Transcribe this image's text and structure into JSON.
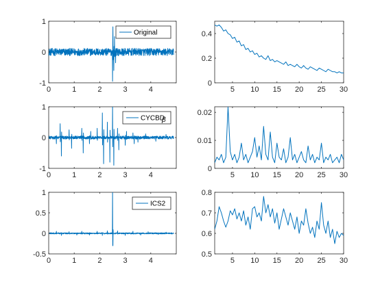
{
  "colors": {
    "series": "#0072BD",
    "axis": "#262626",
    "background": "#ffffff"
  },
  "chart_data": [
    {
      "type": "line",
      "panel": "top-left",
      "legend": [
        "Original"
      ],
      "legend_placement": "top-right",
      "xlim": [
        0,
        5
      ],
      "ylim": [
        -1,
        1
      ],
      "xticks": [
        0,
        1,
        2,
        3,
        4
      ],
      "yticks": [
        -1,
        0,
        1
      ],
      "grid": false,
      "series": [
        {
          "name": "Original",
          "kind": "noisy-signal-with-impulse",
          "x_range": [
            0,
            4.9
          ],
          "noise_amplitude": 0.12,
          "impulses": [
            [
              2.5,
              -0.95
            ],
            [
              2.52,
              0.82
            ],
            [
              2.55,
              -0.6
            ],
            [
              2.58,
              0.5
            ],
            [
              2.62,
              -0.35
            ]
          ]
        }
      ]
    },
    {
      "type": "line",
      "panel": "top-right",
      "legend": [],
      "xlim": [
        1,
        30
      ],
      "ylim": [
        0,
        0.5
      ],
      "xticks": [
        5,
        10,
        15,
        20,
        25,
        30
      ],
      "yticks": [
        0,
        0.2,
        0.4
      ],
      "grid": false,
      "series": [
        {
          "x": [
            1,
            1.5,
            2,
            2.5,
            3,
            3.5,
            4,
            4.5,
            5,
            5.5,
            6,
            6.5,
            7,
            7.5,
            8,
            8.5,
            9,
            9.5,
            10,
            10.5,
            11,
            11.5,
            12,
            12.5,
            13,
            13.5,
            14,
            14.5,
            15,
            15.5,
            16,
            16.5,
            17,
            17.5,
            18,
            18.5,
            19,
            19.5,
            20,
            20.5,
            21,
            21.5,
            22,
            22.5,
            23,
            23.5,
            24,
            24.5,
            25,
            25.5,
            26,
            26.5,
            27,
            27.5,
            28,
            28.5,
            29,
            29.5,
            30
          ],
          "values": [
            0.47,
            0.46,
            0.47,
            0.45,
            0.42,
            0.43,
            0.4,
            0.39,
            0.36,
            0.37,
            0.33,
            0.34,
            0.3,
            0.31,
            0.27,
            0.28,
            0.25,
            0.26,
            0.23,
            0.24,
            0.21,
            0.22,
            0.2,
            0.19,
            0.22,
            0.18,
            0.19,
            0.17,
            0.18,
            0.17,
            0.16,
            0.15,
            0.17,
            0.14,
            0.15,
            0.14,
            0.13,
            0.15,
            0.13,
            0.12,
            0.14,
            0.12,
            0.11,
            0.13,
            0.12,
            0.11,
            0.1,
            0.12,
            0.11,
            0.1,
            0.09,
            0.11,
            0.1,
            0.09,
            0.09,
            0.08,
            0.09,
            0.08,
            0.08
          ]
        }
      ]
    },
    {
      "type": "line",
      "panel": "middle-left",
      "legend": [
        "CYCBD",
        "β"
      ],
      "legend_placement": "top-right",
      "xlim": [
        0,
        5
      ],
      "ylim": [
        -1,
        1
      ],
      "xticks": [
        0,
        1,
        2,
        3,
        4
      ],
      "yticks": [
        -1,
        0,
        1
      ],
      "grid": false,
      "series": [
        {
          "name": "CYCBD β",
          "kind": "impulse-train",
          "x_range": [
            0,
            4.9
          ],
          "noise_amplitude": 0.05,
          "impulses": [
            [
              0.3,
              -0.2
            ],
            [
              0.45,
              0.45
            ],
            [
              0.5,
              -0.6
            ],
            [
              0.8,
              0.25
            ],
            [
              0.9,
              -0.35
            ],
            [
              1.3,
              0.3
            ],
            [
              1.35,
              -0.5
            ],
            [
              1.6,
              -0.2
            ],
            [
              1.65,
              0.2
            ],
            [
              1.9,
              0.3
            ],
            [
              2.1,
              0.8
            ],
            [
              2.15,
              -0.85
            ],
            [
              2.3,
              0.5
            ],
            [
              2.4,
              -0.8
            ],
            [
              2.5,
              1.0
            ],
            [
              2.55,
              -0.9
            ],
            [
              2.7,
              0.3
            ],
            [
              2.75,
              -0.4
            ],
            [
              3.0,
              -0.25
            ],
            [
              3.05,
              0.2
            ],
            [
              3.3,
              0.15
            ],
            [
              3.35,
              -0.2
            ],
            [
              3.5,
              -0.15
            ],
            [
              3.8,
              0.12
            ],
            [
              4.2,
              -0.12
            ],
            [
              4.6,
              0.1
            ]
          ]
        }
      ]
    },
    {
      "type": "line",
      "panel": "middle-right",
      "legend": [],
      "xlim": [
        1,
        30
      ],
      "ylim": [
        0,
        0.022
      ],
      "xticks": [
        5,
        10,
        15,
        20,
        25,
        30
      ],
      "yticks": [
        0,
        0.01,
        0.02
      ],
      "grid": false,
      "series": [
        {
          "x": [
            1,
            1.5,
            2,
            2.5,
            3,
            3.5,
            4,
            4.5,
            5,
            5.5,
            6,
            6.5,
            7,
            7.5,
            8,
            8.5,
            9,
            9.5,
            10,
            10.5,
            11,
            11.5,
            12,
            12.5,
            13,
            13.5,
            14,
            14.5,
            15,
            15.5,
            16,
            16.5,
            17,
            17.5,
            18,
            18.5,
            19,
            19.5,
            20,
            20.5,
            21,
            21.5,
            22,
            22.5,
            23,
            23.5,
            24,
            24.5,
            25,
            25.5,
            26,
            26.5,
            27,
            27.5,
            28,
            28.5,
            29,
            29.5,
            30
          ],
          "values": [
            0.002,
            0.004,
            0.003,
            0.005,
            0.002,
            0.004,
            0.022,
            0.006,
            0.003,
            0.005,
            0.002,
            0.004,
            0.009,
            0.003,
            0.005,
            0.002,
            0.004,
            0.006,
            0.011,
            0.004,
            0.008,
            0.003,
            0.015,
            0.005,
            0.003,
            0.013,
            0.004,
            0.002,
            0.009,
            0.004,
            0.003,
            0.007,
            0.002,
            0.004,
            0.011,
            0.003,
            0.005,
            0.002,
            0.004,
            0.006,
            0.003,
            0.002,
            0.008,
            0.003,
            0.005,
            0.002,
            0.004,
            0.003,
            0.009,
            0.002,
            0.004,
            0.003,
            0.005,
            0.002,
            0.003,
            0.004,
            0.002,
            0.005,
            0.003
          ]
        }
      ]
    },
    {
      "type": "line",
      "panel": "bottom-left",
      "legend": [
        "ICS2"
      ],
      "legend_placement": "top-right",
      "xlim": [
        0,
        5
      ],
      "ylim": [
        -0.5,
        1
      ],
      "xticks": [
        0,
        1,
        2,
        3,
        4
      ],
      "yticks": [
        -0.5,
        0,
        0.5,
        1
      ],
      "grid": false,
      "series": [
        {
          "name": "ICS2",
          "kind": "impulse-train",
          "x_range": [
            0,
            4.9
          ],
          "noise_amplitude": 0.015,
          "impulses": [
            [
              0.3,
              0.05
            ],
            [
              0.5,
              -0.05
            ],
            [
              0.8,
              0.04
            ],
            [
              1.1,
              -0.04
            ],
            [
              1.3,
              0.05
            ],
            [
              1.6,
              -0.04
            ],
            [
              1.9,
              0.05
            ],
            [
              2.1,
              -0.05
            ],
            [
              2.3,
              0.06
            ],
            [
              2.5,
              1.0
            ],
            [
              2.52,
              -0.3
            ],
            [
              2.7,
              0.06
            ],
            [
              3.0,
              -0.05
            ],
            [
              3.3,
              0.05
            ],
            [
              3.6,
              -0.04
            ],
            [
              3.9,
              0.04
            ],
            [
              4.3,
              -0.03
            ],
            [
              4.6,
              0.03
            ]
          ]
        }
      ]
    },
    {
      "type": "line",
      "panel": "bottom-right",
      "legend": [],
      "xlim": [
        1,
        30
      ],
      "ylim": [
        0.5,
        0.8
      ],
      "xticks": [
        5,
        10,
        15,
        20,
        25,
        30
      ],
      "yticks": [
        0.5,
        0.6,
        0.7,
        0.8
      ],
      "grid": false,
      "series": [
        {
          "x": [
            1,
            1.5,
            2,
            2.5,
            3,
            3.5,
            4,
            4.5,
            5,
            5.5,
            6,
            6.5,
            7,
            7.5,
            8,
            8.5,
            9,
            9.5,
            10,
            10.5,
            11,
            11.5,
            12,
            12.5,
            13,
            13.5,
            14,
            14.5,
            15,
            15.5,
            16,
            16.5,
            17,
            17.5,
            18,
            18.5,
            19,
            19.5,
            20,
            20.5,
            21,
            21.5,
            22,
            22.5,
            23,
            23.5,
            24,
            24.5,
            25,
            25.5,
            26,
            26.5,
            27,
            27.5,
            28,
            28.5,
            29,
            29.5,
            30
          ],
          "values": [
            0.62,
            0.66,
            0.73,
            0.7,
            0.66,
            0.63,
            0.66,
            0.71,
            0.69,
            0.72,
            0.67,
            0.7,
            0.66,
            0.71,
            0.64,
            0.68,
            0.62,
            0.72,
            0.73,
            0.68,
            0.7,
            0.66,
            0.78,
            0.7,
            0.74,
            0.68,
            0.72,
            0.65,
            0.7,
            0.62,
            0.67,
            0.72,
            0.68,
            0.64,
            0.7,
            0.66,
            0.62,
            0.68,
            0.6,
            0.66,
            0.64,
            0.72,
            0.65,
            0.6,
            0.63,
            0.58,
            0.66,
            0.62,
            0.75,
            0.64,
            0.6,
            0.66,
            0.58,
            0.62,
            0.55,
            0.61,
            0.58,
            0.6,
            0.59
          ]
        }
      ]
    }
  ]
}
